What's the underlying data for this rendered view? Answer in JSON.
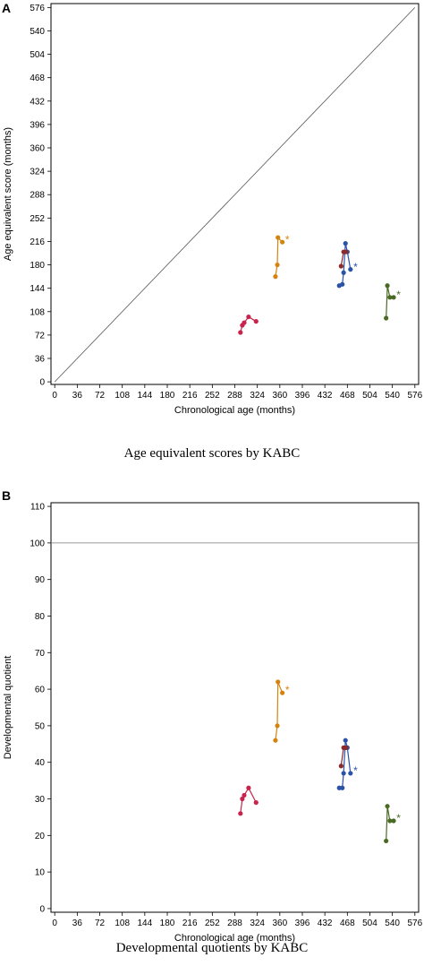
{
  "figure": {
    "panel_a_letter": "A",
    "panel_b_letter": "B",
    "caption_a": "Age equivalent scores by KABC",
    "caption_b": "Developmental quotients by KABC",
    "series_colors": [
      "#c8234b",
      "#d4830f",
      "#2a53a8",
      "#4a6a23"
    ],
    "marker_color_2": "#8b2a2a"
  },
  "chart_data": [
    {
      "type": "line",
      "panel": "A",
      "xlabel": "Chronological age (months)",
      "ylabel": "Age equivalent score (months)",
      "xlim": [
        -6,
        582
      ],
      "ylim": [
        -4,
        582
      ],
      "xticks": [
        0,
        36,
        72,
        108,
        144,
        180,
        216,
        252,
        288,
        324,
        360,
        396,
        432,
        468,
        504,
        540,
        576
      ],
      "yticks": [
        0,
        36,
        72,
        108,
        144,
        180,
        216,
        252,
        288,
        324,
        360,
        396,
        432,
        468,
        504,
        540,
        576
      ],
      "reference_line": {
        "type": "identity",
        "from": [
          0,
          0
        ],
        "to": [
          576,
          576
        ]
      },
      "series": [
        {
          "color": "#c8234b",
          "points": [
            [
              297,
              76
            ],
            [
              300,
              87
            ],
            [
              303,
              91
            ],
            [
              310,
              100
            ],
            [
              322,
              93
            ]
          ]
        },
        {
          "color": "#d4830f",
          "points": [
            [
              353,
              162
            ],
            [
              356,
              180
            ],
            [
              357,
              222
            ],
            [
              364,
              215
            ]
          ],
          "star": [
            372,
            220
          ]
        },
        {
          "color": "#2a53a8",
          "points": [
            [
              455,
              148
            ],
            [
              460,
              150
            ],
            [
              462,
              168
            ],
            [
              465,
              213
            ],
            [
              468,
              200
            ],
            [
              473,
              173
            ]
          ],
          "star": [
            481,
            178
          ]
        },
        {
          "color": "#8b2a2a",
          "points": [
            [
              458,
              178
            ],
            [
              462,
              200
            ],
            [
              466,
              200
            ]
          ]
        },
        {
          "color": "#4a6a23",
          "points": [
            [
              530,
              98
            ],
            [
              532,
              148
            ],
            [
              536,
              130
            ],
            [
              542,
              130
            ]
          ],
          "star": [
            550,
            135
          ]
        }
      ]
    },
    {
      "type": "line",
      "panel": "B",
      "xlabel": "Chronological age (months)",
      "ylabel": "Developmental quotient",
      "xlim": [
        -6,
        582
      ],
      "ylim": [
        -1,
        111
      ],
      "xticks": [
        0,
        36,
        72,
        108,
        144,
        180,
        216,
        252,
        288,
        324,
        360,
        396,
        432,
        468,
        504,
        540,
        576
      ],
      "yticks": [
        0,
        10,
        20,
        30,
        40,
        50,
        60,
        70,
        80,
        90,
        100,
        110
      ],
      "reference_line": {
        "type": "horizontal",
        "y": 100
      },
      "series": [
        {
          "color": "#c8234b",
          "points": [
            [
              297,
              26
            ],
            [
              300,
              30
            ],
            [
              303,
              31
            ],
            [
              310,
              33
            ],
            [
              322,
              29
            ]
          ]
        },
        {
          "color": "#d4830f",
          "points": [
            [
              353,
              46
            ],
            [
              356,
              50
            ],
            [
              357,
              62
            ],
            [
              364,
              59
            ]
          ],
          "star": [
            372,
            60
          ]
        },
        {
          "color": "#2a53a8",
          "points": [
            [
              455,
              33
            ],
            [
              460,
              33
            ],
            [
              462,
              37
            ],
            [
              465,
              46
            ],
            [
              468,
              44
            ],
            [
              473,
              37
            ]
          ],
          "star": [
            481,
            38
          ]
        },
        {
          "color": "#8b2a2a",
          "points": [
            [
              458,
              39
            ],
            [
              462,
              44
            ],
            [
              466,
              44
            ]
          ]
        },
        {
          "color": "#4a6a23",
          "points": [
            [
              530,
              18.5
            ],
            [
              532,
              28
            ],
            [
              536,
              24
            ],
            [
              542,
              24
            ]
          ],
          "star": [
            550,
            25
          ]
        }
      ]
    }
  ]
}
